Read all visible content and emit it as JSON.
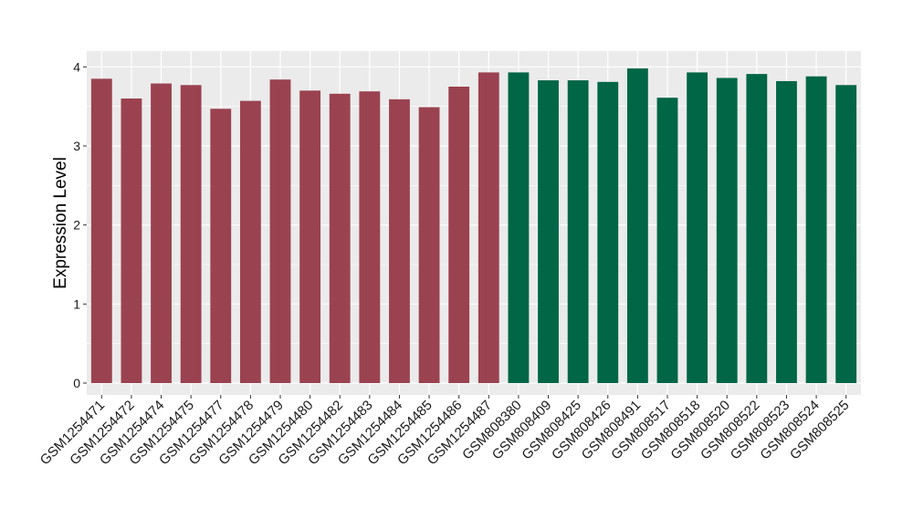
{
  "chart_data": {
    "type": "bar",
    "title": "",
    "xlabel": "",
    "ylabel": "Expression Level",
    "ylim": [
      -0.15,
      4.2
    ],
    "yticks": [
      0,
      1,
      2,
      3,
      4
    ],
    "grid": true,
    "legend": "none",
    "colors": {
      "group1": "#9b4250",
      "group2": "#006645",
      "panel_bg": "#ebebeb",
      "grid": "#ffffff"
    },
    "categories": [
      "GSM1254471",
      "GSM1254472",
      "GSM1254474",
      "GSM1254475",
      "GSM1254477",
      "GSM1254478",
      "GSM1254479",
      "GSM1254480",
      "GSM1254482",
      "GSM1254483",
      "GSM1254484",
      "GSM1254485",
      "GSM1254486",
      "GSM1254487",
      "GSM808380",
      "GSM808409",
      "GSM808425",
      "GSM808426",
      "GSM808491",
      "GSM808517",
      "GSM808518",
      "GSM808520",
      "GSM808522",
      "GSM808523",
      "GSM808524",
      "GSM808525"
    ],
    "values": [
      3.85,
      3.6,
      3.79,
      3.77,
      3.47,
      3.57,
      3.84,
      3.7,
      3.66,
      3.69,
      3.59,
      3.49,
      3.75,
      3.93,
      3.93,
      3.83,
      3.83,
      3.81,
      3.98,
      3.61,
      3.93,
      3.86,
      3.91,
      3.82,
      3.88,
      3.77
    ],
    "groups": [
      "group1",
      "group1",
      "group1",
      "group1",
      "group1",
      "group1",
      "group1",
      "group1",
      "group1",
      "group1",
      "group1",
      "group1",
      "group1",
      "group1",
      "group2",
      "group2",
      "group2",
      "group2",
      "group2",
      "group2",
      "group2",
      "group2",
      "group2",
      "group2",
      "group2",
      "group2"
    ]
  }
}
